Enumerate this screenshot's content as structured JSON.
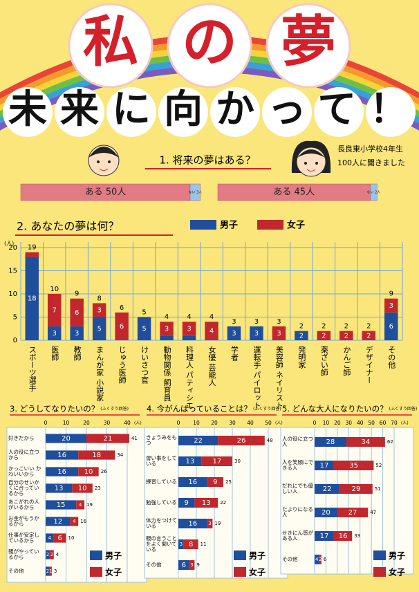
{
  "title": "私の夢",
  "subtitle": "未来に向かって！",
  "chart_data": [
    {
      "type": "split",
      "title": "1. 将来の夢はある？",
      "subtitle": [
        "長良東小学校4年生",
        "100人に聞きました"
      ],
      "bars": [
        {
          "values": [
            50,
            3
          ],
          "value_labels": [
            "ある 50人",
            "ない 3人"
          ],
          "colors": [
            "#e27c84",
            "#9cc3e6"
          ]
        },
        {
          "values": [
            45,
            2
          ],
          "value_labels": [
            "ある 45人",
            "ない 2人"
          ],
          "colors": [
            "#e27c84",
            "#9cc3e6"
          ]
        }
      ]
    },
    {
      "type": "stacked",
      "title": "2. あなたの夢は何？",
      "y_unit": "(人)",
      "categories": [
        "スポーツ選手",
        "医師",
        "教師",
        "まんが家 小説家",
        "じゅう医師",
        "けいさつ官",
        "動物関係 飼育員",
        "料理人 パティシエ",
        "女優 芸能人",
        "学者",
        "運転手 パイロット",
        "美容師 ネイリスト",
        "発明家",
        "薬ざい師",
        "かんご師",
        "デザイナー",
        "その他"
      ],
      "series": [
        {
          "name": "男子",
          "color": "#1f4e9c",
          "values": [
            18,
            3,
            3,
            5,
            0,
            5,
            1,
            1,
            0,
            3,
            3,
            0,
            2,
            0,
            0,
            0,
            6
          ]
        },
        {
          "name": "女子",
          "color": "#c0282d",
          "values": [
            1,
            7,
            6,
            3,
            6,
            0,
            3,
            3,
            4,
            0,
            0,
            3,
            0,
            2,
            2,
            2,
            3
          ]
        }
      ],
      "totals": [
        19,
        10,
        9,
        8,
        6,
        5,
        4,
        4,
        4,
        3,
        3,
        3,
        2,
        2,
        2,
        2,
        9
      ],
      "ylim": [
        0,
        20
      ],
      "yticks": [
        0,
        5,
        10,
        15,
        20
      ],
      "grid": true
    },
    {
      "type": "hstacked",
      "title": "3. どうしてなりたいの？",
      "note": "(ふくすう回答)",
      "x_unit": "(人)",
      "categories": [
        "好きだから",
        "人の役に立つから",
        "かっこいい かわいいから",
        "自分のせいかくに合っているから",
        "あこがれの人がいるから",
        "お金がもうかるから",
        "仕事が安定しているから",
        "親がやっているから",
        "その他"
      ],
      "series": [
        {
          "name": "男子",
          "color": "#1f4e9c",
          "values": [
            20,
            16,
            16,
            13,
            15,
            12,
            4,
            2,
            2
          ]
        },
        {
          "name": "女子",
          "color": "#c0282d",
          "values": [
            21,
            18,
            10,
            10,
            4,
            4,
            6,
            2,
            1
          ]
        }
      ],
      "totals": [
        41,
        34,
        26,
        23,
        19,
        16,
        10,
        4,
        3
      ],
      "xlim": [
        0,
        40
      ],
      "xticks": [
        0,
        10,
        20,
        30,
        40
      ],
      "grid": true
    },
    {
      "type": "hstacked",
      "title": "4. 今がんばっていることは？",
      "note": "(ふくすう回答)",
      "x_unit": "(人)",
      "categories": [
        "きょうみをもつ",
        "習い事をしている",
        "練習している",
        "勉強している",
        "体力をつけている",
        "親の言うことをよく聞いている",
        "その他"
      ],
      "series": [
        {
          "name": "男子",
          "color": "#1f4e9c",
          "values": [
            22,
            13,
            16,
            9,
            16,
            3,
            6
          ]
        },
        {
          "name": "女子",
          "color": "#c0282d",
          "values": [
            26,
            17,
            9,
            13,
            3,
            8,
            3
          ]
        }
      ],
      "totals": [
        48,
        30,
        25,
        22,
        19,
        11,
        9
      ],
      "xlim": [
        0,
        50
      ],
      "xticks": [
        0,
        10,
        20,
        30,
        40,
        50
      ],
      "grid": true
    },
    {
      "type": "hstacked",
      "title": "5. どんな大人になりたいの？",
      "note": "(ふくすう回答)",
      "x_unit": "(人)",
      "categories": [
        "人の役に立つ人",
        "人を笑顔にできる人",
        "だれにでも優しい人",
        "たよりになる人",
        "せきにん感がある人",
        "その他"
      ],
      "series": [
        {
          "name": "男子",
          "color": "#1f4e9c",
          "values": [
            28,
            17,
            22,
            20,
            17,
            4
          ]
        },
        {
          "name": "女子",
          "color": "#c0282d",
          "values": [
            34,
            35,
            29,
            27,
            16,
            2
          ]
        }
      ],
      "totals": [
        62,
        52,
        51,
        47,
        33,
        6
      ],
      "xlim": [
        0,
        70
      ],
      "xticks": [
        0,
        10,
        20,
        30,
        40,
        50,
        60,
        70
      ],
      "grid": true
    }
  ]
}
